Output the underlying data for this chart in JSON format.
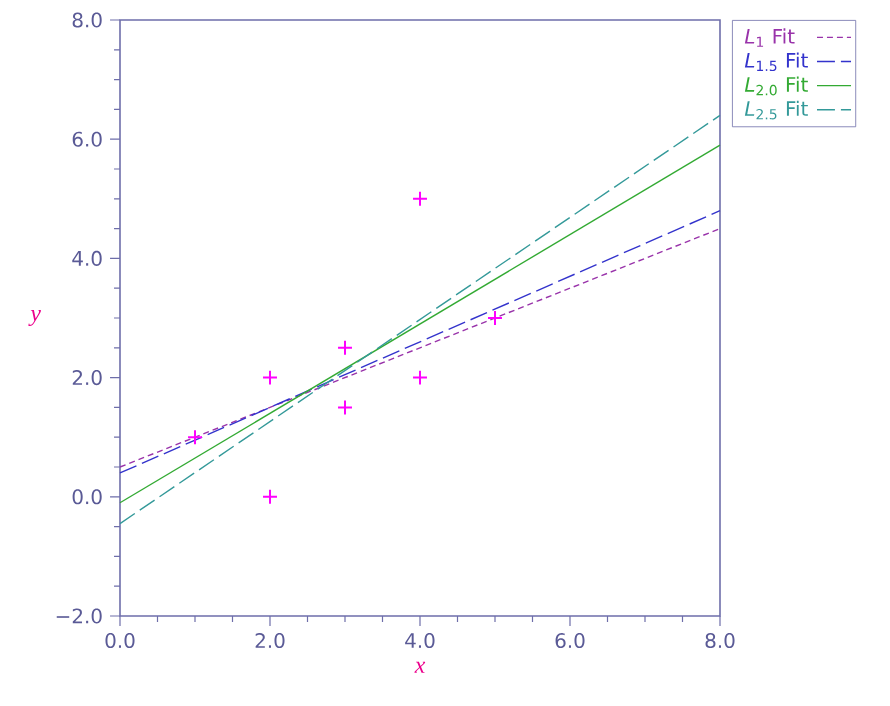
{
  "chart_data": {
    "type": "scatter",
    "xlabel": "x",
    "ylabel": "y",
    "xlim": [
      0,
      8
    ],
    "ylim": [
      -2,
      8
    ],
    "xticks": [
      {
        "value": 0,
        "label": "0.0"
      },
      {
        "value": 2,
        "label": "2.0"
      },
      {
        "value": 4,
        "label": "4.0"
      },
      {
        "value": 6,
        "label": "6.0"
      },
      {
        "value": 8,
        "label": "8.0"
      }
    ],
    "yticks": [
      {
        "value": -2,
        "label": "−2.0"
      },
      {
        "value": 0,
        "label": "0.0"
      },
      {
        "value": 2,
        "label": "2.0"
      },
      {
        "value": 4,
        "label": "4.0"
      },
      {
        "value": 6,
        "label": "6.0"
      },
      {
        "value": 8,
        "label": "8.0"
      }
    ],
    "grid": false,
    "legend": "top right",
    "marker": "cross",
    "series": [
      {
        "color": "#ff00ff",
        "x": [
          1,
          2,
          2,
          3,
          3,
          4,
          4,
          5
        ],
        "values": [
          1,
          2,
          0,
          2.5,
          1.5,
          5,
          2,
          3
        ]
      },
      {
        "type": "line",
        "name": "*L*$_{1}$ Fit",
        "color": "#9933aa",
        "line_style": "dotted",
        "marker": "none",
        "x": [
          0,
          8
        ],
        "values": [
          0.5,
          4.5
        ]
      },
      {
        "type": "line",
        "name": "*L*$_{1.5}$ Fit",
        "color": "#3333cc",
        "line_style": "dashed",
        "marker": "none",
        "x": [
          0,
          8
        ],
        "values": [
          0.4,
          4.8
        ]
      },
      {
        "type": "line",
        "name": "*L*$_{2.0}$ Fit",
        "color": "#33aa33",
        "line_style": "solid",
        "marker": "none",
        "x": [
          0,
          8
        ],
        "values": [
          -0.1,
          5.9
        ]
      },
      {
        "type": "line",
        "name": "*L*$_{2.5}$ Fit",
        "color": "#339999",
        "line_style": "dashed",
        "marker": "none",
        "x": [
          0,
          8
        ],
        "values": [
          -0.45,
          6.4
        ]
      }
    ]
  }
}
